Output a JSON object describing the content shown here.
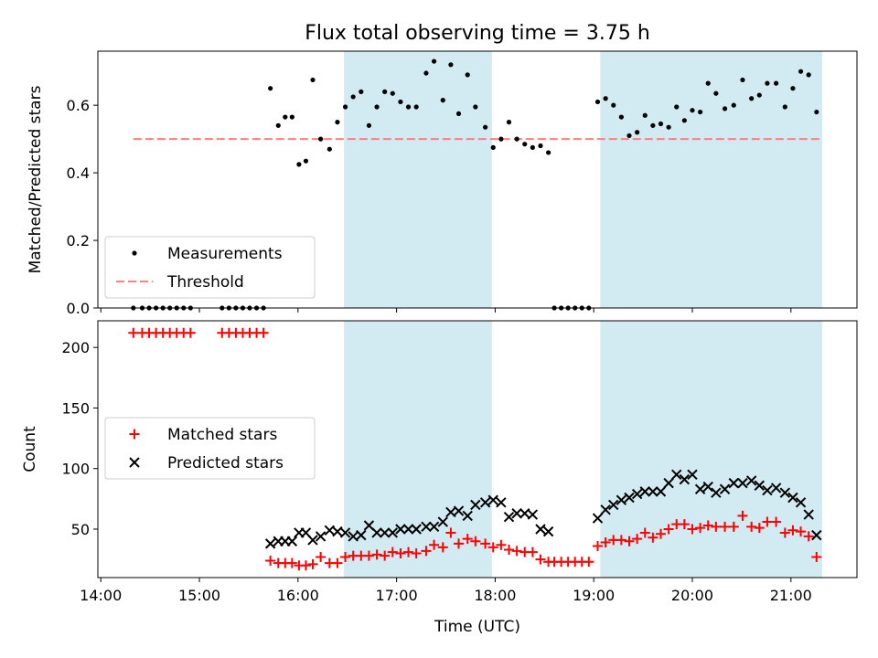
{
  "title": "Flux total observing time = 3.75 h",
  "xlabel": "Time (UTC)",
  "colors": {
    "measurement": "#000000",
    "threshold": "#ff7f7f",
    "matched": "#ff0000",
    "predicted": "#000000",
    "shade": "#add8e6"
  },
  "chart_data": [
    {
      "type": "scatter",
      "ylabel": "Matched/Predicted stars",
      "x_ticks": [
        "14:00",
        "15:00",
        "16:00",
        "17:00",
        "18:00",
        "19:00",
        "20:00",
        "21:00"
      ],
      "y_ticks": [
        "0.0",
        "0.2",
        "0.4",
        "0.6"
      ],
      "xlim": [
        13.97,
        21.67
      ],
      "ylim": [
        0,
        0.76
      ],
      "shaded_intervals": [
        [
          "16:28",
          "17:58"
        ],
        [
          "19:04",
          "21:19"
        ]
      ],
      "legend": {
        "placement": "lower-left",
        "entries": [
          "Measurements",
          "Threshold"
        ]
      },
      "threshold": {
        "name": "Threshold",
        "y": 0.5,
        "x": [
          14.33,
          21.32
        ]
      },
      "series": [
        {
          "name": "Measurements",
          "marker": "dot",
          "points": [
            [
              14.33,
              0
            ],
            [
              14.42,
              0
            ],
            [
              14.49,
              0
            ],
            [
              14.56,
              0
            ],
            [
              14.63,
              0
            ],
            [
              14.7,
              0
            ],
            [
              14.77,
              0
            ],
            [
              14.84,
              0
            ],
            [
              14.91,
              0
            ],
            [
              15.23,
              0
            ],
            [
              15.3,
              0
            ],
            [
              15.37,
              0
            ],
            [
              15.44,
              0
            ],
            [
              15.51,
              0
            ],
            [
              15.58,
              0
            ],
            [
              15.65,
              0
            ],
            [
              15.72,
              0.65
            ],
            [
              15.8,
              0.54
            ],
            [
              15.87,
              0.565
            ],
            [
              15.94,
              0.565
            ],
            [
              16.01,
              0.425
            ],
            [
              16.08,
              0.435
            ],
            [
              16.15,
              0.675
            ],
            [
              16.23,
              0.5
            ],
            [
              16.32,
              0.47
            ],
            [
              16.4,
              0.55
            ],
            [
              16.48,
              0.595
            ],
            [
              16.56,
              0.625
            ],
            [
              16.64,
              0.64
            ],
            [
              16.72,
              0.54
            ],
            [
              16.8,
              0.595
            ],
            [
              16.88,
              0.64
            ],
            [
              16.96,
              0.635
            ],
            [
              17.04,
              0.61
            ],
            [
              17.12,
              0.595
            ],
            [
              17.2,
              0.595
            ],
            [
              17.3,
              0.695
            ],
            [
              17.38,
              0.73
            ],
            [
              17.47,
              0.615
            ],
            [
              17.55,
              0.72
            ],
            [
              17.63,
              0.575
            ],
            [
              17.72,
              0.69
            ],
            [
              17.8,
              0.595
            ],
            [
              17.9,
              0.535
            ],
            [
              17.98,
              0.475
            ],
            [
              18.06,
              0.5
            ],
            [
              18.14,
              0.55
            ],
            [
              18.22,
              0.5
            ],
            [
              18.3,
              0.485
            ],
            [
              18.38,
              0.475
            ],
            [
              18.46,
              0.48
            ],
            [
              18.54,
              0.46
            ],
            [
              18.6,
              0
            ],
            [
              18.67,
              0
            ],
            [
              18.74,
              0
            ],
            [
              18.81,
              0
            ],
            [
              18.88,
              0
            ],
            [
              18.95,
              0
            ],
            [
              19.04,
              0.61
            ],
            [
              19.12,
              0.62
            ],
            [
              19.2,
              0.6
            ],
            [
              19.28,
              0.565
            ],
            [
              19.36,
              0.51
            ],
            [
              19.44,
              0.52
            ],
            [
              19.52,
              0.57
            ],
            [
              19.6,
              0.54
            ],
            [
              19.68,
              0.545
            ],
            [
              19.76,
              0.535
            ],
            [
              19.84,
              0.595
            ],
            [
              19.92,
              0.555
            ],
            [
              20.0,
              0.585
            ],
            [
              20.08,
              0.58
            ],
            [
              20.16,
              0.665
            ],
            [
              20.24,
              0.635
            ],
            [
              20.33,
              0.59
            ],
            [
              20.42,
              0.6
            ],
            [
              20.51,
              0.675
            ],
            [
              20.6,
              0.62
            ],
            [
              20.68,
              0.63
            ],
            [
              20.76,
              0.665
            ],
            [
              20.85,
              0.665
            ],
            [
              20.94,
              0.595
            ],
            [
              21.02,
              0.65
            ],
            [
              21.1,
              0.7
            ],
            [
              21.18,
              0.69
            ],
            [
              21.26,
              0.58
            ]
          ]
        }
      ]
    },
    {
      "type": "scatter",
      "ylabel": "Count",
      "x_ticks": [
        "14:00",
        "15:00",
        "16:00",
        "17:00",
        "18:00",
        "19:00",
        "20:00",
        "21:00"
      ],
      "y_ticks": [
        "50",
        "100",
        "150",
        "200"
      ],
      "xlim": [
        13.97,
        21.67
      ],
      "ylim": [
        10,
        222
      ],
      "shaded_intervals": [
        [
          "16:28",
          "17:58"
        ],
        [
          "19:04",
          "21:19"
        ]
      ],
      "legend": {
        "placement": "center-left",
        "entries": [
          "Matched stars",
          "Predicted stars"
        ]
      },
      "series": [
        {
          "name": "Matched stars",
          "marker": "plus",
          "points": [
            [
              14.33,
              212
            ],
            [
              14.42,
              212
            ],
            [
              14.49,
              212
            ],
            [
              14.56,
              212
            ],
            [
              14.63,
              212
            ],
            [
              14.7,
              212
            ],
            [
              14.77,
              212
            ],
            [
              14.84,
              212
            ],
            [
              14.91,
              212
            ],
            [
              15.23,
              212
            ],
            [
              15.3,
              212
            ],
            [
              15.37,
              212
            ],
            [
              15.44,
              212
            ],
            [
              15.51,
              212
            ],
            [
              15.58,
              212
            ],
            [
              15.65,
              212
            ],
            [
              15.72,
              24
            ],
            [
              15.8,
              22
            ],
            [
              15.87,
              22
            ],
            [
              15.94,
              22
            ],
            [
              16.01,
              20
            ],
            [
              16.08,
              20
            ],
            [
              16.15,
              21
            ],
            [
              16.23,
              27
            ],
            [
              16.32,
              22
            ],
            [
              16.4,
              22
            ],
            [
              16.48,
              27
            ],
            [
              16.56,
              28
            ],
            [
              16.64,
              28
            ],
            [
              16.72,
              28
            ],
            [
              16.8,
              29
            ],
            [
              16.88,
              28
            ],
            [
              16.96,
              31
            ],
            [
              17.04,
              30
            ],
            [
              17.12,
              31
            ],
            [
              17.2,
              30
            ],
            [
              17.3,
              32
            ],
            [
              17.38,
              37
            ],
            [
              17.47,
              35
            ],
            [
              17.55,
              47
            ],
            [
              17.63,
              38
            ],
            [
              17.72,
              42
            ],
            [
              17.8,
              40
            ],
            [
              17.9,
              38
            ],
            [
              17.98,
              35
            ],
            [
              18.06,
              37
            ],
            [
              18.14,
              33
            ],
            [
              18.22,
              32
            ],
            [
              18.3,
              31
            ],
            [
              18.38,
              31
            ],
            [
              18.46,
              25
            ],
            [
              18.54,
              23
            ],
            [
              18.6,
              23
            ],
            [
              18.67,
              23
            ],
            [
              18.74,
              23
            ],
            [
              18.81,
              23
            ],
            [
              18.88,
              23
            ],
            [
              18.95,
              23
            ],
            [
              19.04,
              36
            ],
            [
              19.12,
              39
            ],
            [
              19.2,
              41
            ],
            [
              19.28,
              41
            ],
            [
              19.36,
              40
            ],
            [
              19.44,
              42
            ],
            [
              19.52,
              47
            ],
            [
              19.6,
              43
            ],
            [
              19.68,
              46
            ],
            [
              19.76,
              50
            ],
            [
              19.84,
              54
            ],
            [
              19.92,
              54
            ],
            [
              20.0,
              50
            ],
            [
              20.08,
              51
            ],
            [
              20.16,
              53
            ],
            [
              20.24,
              52
            ],
            [
              20.33,
              52
            ],
            [
              20.42,
              52
            ],
            [
              20.51,
              61
            ],
            [
              20.6,
              52
            ],
            [
              20.68,
              51
            ],
            [
              20.76,
              56
            ],
            [
              20.85,
              56
            ],
            [
              20.94,
              47
            ],
            [
              21.02,
              49
            ],
            [
              21.1,
              48
            ],
            [
              21.18,
              44
            ],
            [
              21.26,
              27
            ]
          ]
        },
        {
          "name": "Predicted stars",
          "marker": "x",
          "points": [
            [
              15.72,
              38
            ],
            [
              15.8,
              40
            ],
            [
              15.87,
              40
            ],
            [
              15.94,
              40
            ],
            [
              16.01,
              47
            ],
            [
              16.08,
              47
            ],
            [
              16.15,
              41
            ],
            [
              16.23,
              44
            ],
            [
              16.32,
              49
            ],
            [
              16.4,
              48
            ],
            [
              16.48,
              47
            ],
            [
              16.56,
              44
            ],
            [
              16.64,
              45
            ],
            [
              16.72,
              53
            ],
            [
              16.8,
              47
            ],
            [
              16.88,
              47
            ],
            [
              16.96,
              47
            ],
            [
              17.04,
              50
            ],
            [
              17.12,
              50
            ],
            [
              17.2,
              50
            ],
            [
              17.3,
              52
            ],
            [
              17.38,
              52
            ],
            [
              17.47,
              56
            ],
            [
              17.55,
              64
            ],
            [
              17.63,
              65
            ],
            [
              17.72,
              61
            ],
            [
              17.8,
              70
            ],
            [
              17.9,
              72
            ],
            [
              17.98,
              74
            ],
            [
              18.06,
              72
            ],
            [
              18.14,
              60
            ],
            [
              18.22,
              63
            ],
            [
              18.3,
              63
            ],
            [
              18.38,
              62
            ],
            [
              18.46,
              50
            ],
            [
              18.54,
              48
            ],
            [
              19.04,
              59
            ],
            [
              19.12,
              66
            ],
            [
              19.2,
              70
            ],
            [
              19.28,
              74
            ],
            [
              19.36,
              76
            ],
            [
              19.44,
              79
            ],
            [
              19.52,
              81
            ],
            [
              19.6,
              81
            ],
            [
              19.68,
              81
            ],
            [
              19.76,
              88
            ],
            [
              19.84,
              95
            ],
            [
              19.92,
              91
            ],
            [
              20.0,
              95
            ],
            [
              20.08,
              83
            ],
            [
              20.16,
              85
            ],
            [
              20.24,
              80
            ],
            [
              20.33,
              83
            ],
            [
              20.42,
              88
            ],
            [
              20.51,
              88
            ],
            [
              20.6,
              90
            ],
            [
              20.68,
              86
            ],
            [
              20.76,
              82
            ],
            [
              20.85,
              84
            ],
            [
              20.94,
              80
            ],
            [
              21.02,
              76
            ],
            [
              21.1,
              72
            ],
            [
              21.18,
              62
            ],
            [
              21.26,
              45
            ]
          ]
        }
      ]
    }
  ]
}
